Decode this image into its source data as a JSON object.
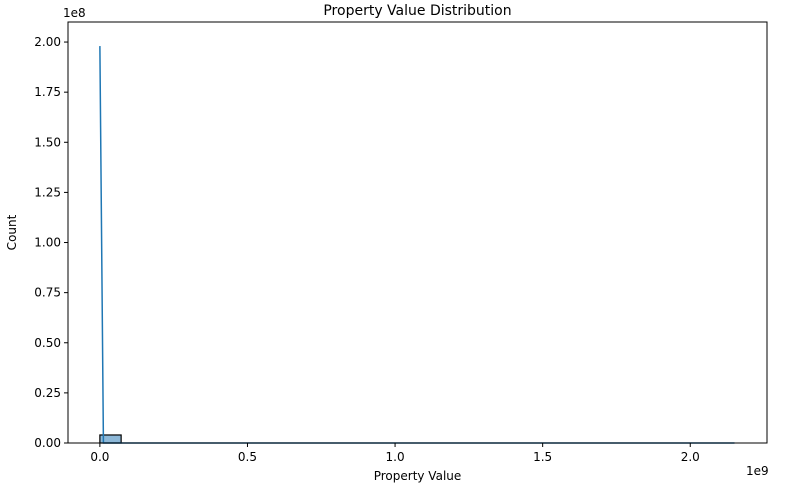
{
  "chart_data": {
    "type": "bar",
    "title": "Property Value Distribution",
    "xlabel": "Property Value",
    "ylabel": "Count",
    "x_offset_label": "1e9",
    "y_offset_label": "1e8",
    "xlim": [
      -0.108,
      2.26
    ],
    "ylim": [
      0,
      2.1
    ],
    "x_unit_scale": 1000000000.0,
    "y_unit_scale": 100000000.0,
    "x_ticks": [
      0.0,
      0.5,
      1.0,
      1.5,
      2.0
    ],
    "x_tick_labels": [
      "0.0",
      "0.5",
      "1.0",
      "1.5",
      "2.0"
    ],
    "y_ticks": [
      0.0,
      0.25,
      0.5,
      0.75,
      1.0,
      1.25,
      1.5,
      1.75,
      2.0
    ],
    "y_tick_labels": [
      "0.00",
      "0.25",
      "0.50",
      "0.75",
      "1.00",
      "1.25",
      "1.50",
      "1.75",
      "2.00"
    ],
    "bins": [
      {
        "x0": 0.0,
        "x1": 0.072,
        "count": 0.04
      }
    ],
    "kde_line": {
      "x": [
        0.0,
        0.012,
        0.5,
        1.0,
        1.5,
        2.15
      ],
      "y": [
        1.98,
        0.0,
        0.0,
        0.0,
        0.0,
        0.0
      ]
    },
    "grid": false,
    "legend": "none",
    "colors": {
      "bar_fill": "#8db8d8",
      "bar_edge": "#000000",
      "line": "#1f77b4"
    }
  }
}
